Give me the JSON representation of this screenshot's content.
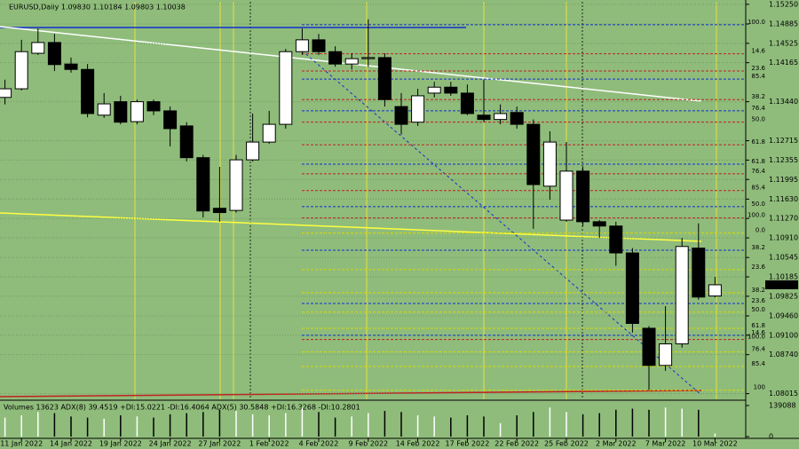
{
  "chart_data": {
    "type": "candlestick",
    "header": "EURUSD,Daily  1.09830 1.10184 1.09803 1.10038",
    "categories": [
      null,
      "11 Jan 2022",
      null,
      null,
      "14 Jan 2022",
      null,
      null,
      "19 Jan 2022",
      null,
      null,
      "24 Jan 2022",
      null,
      null,
      "27 Jan 2022",
      null,
      null,
      "1 Feb 2022",
      null,
      null,
      "4 Feb 2022",
      null,
      null,
      "9 Feb 2022",
      null,
      null,
      "14 Feb 2022",
      null,
      null,
      "17 Feb 2022",
      null,
      null,
      "22 Feb 2022",
      null,
      null,
      "25 Feb 2022",
      null,
      null,
      "2 Mar 2022",
      null,
      null,
      "7 Mar 2022",
      null,
      null,
      "10 Mar 2022"
    ],
    "open": [
      1.1352,
      1.1368,
      1.1434,
      1.1454,
      1.1414,
      1.1404,
      1.1319,
      1.1344,
      1.1307,
      1.1344,
      1.1327,
      1.1299,
      1.124,
      1.1146,
      1.1142,
      1.1236,
      1.1269,
      1.1302,
      1.1437,
      1.1459,
      1.1437,
      1.1414,
      1.1424,
      1.1426,
      1.1335,
      1.1306,
      1.136,
      1.1371,
      1.136,
      1.1319,
      1.1311,
      1.1324,
      1.1302,
      1.1187,
      1.1124,
      1.1215,
      1.1121,
      1.1113,
      1.1063,
      1.0923,
      1.0854,
      1.0894,
      1.1072,
      1.0983
    ],
    "high": [
      1.1385,
      1.1459,
      1.148,
      1.147,
      1.1426,
      1.1414,
      1.136,
      1.1355,
      1.1348,
      1.1348,
      1.1335,
      1.1306,
      1.1245,
      1.1223,
      1.1245,
      1.1322,
      1.1327,
      1.1442,
      1.148,
      1.147,
      1.1447,
      1.1434,
      1.1497,
      1.1434,
      1.136,
      1.1368,
      1.1381,
      1.1381,
      1.1376,
      1.1385,
      1.1339,
      1.1335,
      1.1311,
      1.1289,
      1.1269,
      1.1223,
      1.1124,
      1.1121,
      1.1072,
      1.0927,
      1.0964,
      1.1091,
      1.1118,
      1.10184
    ],
    "low": [
      1.1339,
      1.1365,
      1.1431,
      1.1401,
      1.1398,
      1.1315,
      1.1314,
      1.1302,
      1.1302,
      1.1319,
      1.1261,
      1.1233,
      1.1129,
      1.1121,
      1.1138,
      1.1233,
      1.1266,
      1.1294,
      1.1431,
      1.1431,
      1.1409,
      1.1404,
      1.1409,
      1.1335,
      1.1283,
      1.1299,
      1.1352,
      1.1355,
      1.1319,
      1.1306,
      1.1302,
      1.1294,
      1.1108,
      1.1162,
      1.1121,
      1.1113,
      1.1091,
      1.1039,
      1.0915,
      1.0808,
      1.0844,
      1.0887,
      1.0976,
      1.09803
    ],
    "close": [
      1.1368,
      1.1437,
      1.1454,
      1.1413,
      1.1404,
      1.1322,
      1.134,
      1.1306,
      1.1344,
      1.1327,
      1.1294,
      1.124,
      1.1141,
      1.1138,
      1.1236,
      1.1269,
      1.1302,
      1.1437,
      1.1459,
      1.1437,
      1.1414,
      1.1424,
      1.1426,
      1.1348,
      1.1302,
      1.1355,
      1.1371,
      1.136,
      1.1322,
      1.1311,
      1.1322,
      1.1302,
      1.119,
      1.1269,
      1.1215,
      1.1121,
      1.1113,
      1.1063,
      1.0932,
      1.0854,
      1.0894,
      1.1075,
      1.0981,
      1.10038
    ],
    "ylim": [
      1.0791,
      1.1533
    ],
    "yticks": [
      {
        "value": 1.1525,
        "label": "1.15250"
      },
      {
        "value": 1.14885,
        "label": "1.14885"
      },
      {
        "value": 1.14525,
        "label": "1.14525"
      },
      {
        "value": 1.14165,
        "label": "1.14165"
      },
      {
        "value": 1.1344,
        "label": "1.13440"
      },
      {
        "value": 1.12715,
        "label": "1.12715"
      },
      {
        "value": 1.12355,
        "label": "1.12355"
      },
      {
        "value": 1.11995,
        "label": "1.11995"
      },
      {
        "value": 1.1163,
        "label": "1.11630"
      },
      {
        "value": 1.1127,
        "label": "1.11270"
      },
      {
        "value": 1.1091,
        "label": "1.10910"
      },
      {
        "value": 1.10545,
        "label": "1.10545"
      },
      {
        "value": 1.10185,
        "label": "1.10185"
      },
      {
        "value": 1.09825,
        "label": "1.09825"
      },
      {
        "value": 1.0946,
        "label": "1.09460"
      },
      {
        "value": 1.091,
        "label": "1.09100"
      },
      {
        "value": 1.0874,
        "label": "1.08740"
      },
      {
        "value": 1.08015,
        "label": "1.08015"
      }
    ],
    "current_price": {
      "value": 1.10038,
      "label": "1.10038"
    },
    "grid": true,
    "fib_levels": [
      {
        "value": 1.1487,
        "label": "100.0",
        "color": "#1030d0"
      },
      {
        "value": 1.1433,
        "label": "14.6",
        "color": "#c02020"
      },
      {
        "value": 1.1401,
        "label": "23.6",
        "color": "#c02020"
      },
      {
        "value": 1.1386,
        "label": "85.4",
        "color": "#1030d0"
      },
      {
        "value": 1.1348,
        "label": "38.2",
        "color": "#c02020"
      },
      {
        "value": 1.1327,
        "label": "76.4",
        "color": "#1030d0"
      },
      {
        "value": 1.1306,
        "label": "50.0",
        "color": "#c02020"
      },
      {
        "value": 1.1264,
        "label": "61.8",
        "color": "#c02020"
      },
      {
        "value": 1.1228,
        "label": "61.8",
        "color": "#1030d0"
      },
      {
        "value": 1.121,
        "label": "76.4",
        "color": "#c02020"
      },
      {
        "value": 1.1179,
        "label": "85.4",
        "color": "#c02020"
      },
      {
        "value": 1.1149,
        "label": "50.0",
        "color": "#1030d0"
      },
      {
        "value": 1.1128,
        "label": "100.0",
        "color": "#c02020"
      },
      {
        "value": 1.11,
        "label": "0.0",
        "color": "#d8d800"
      },
      {
        "value": 1.1068,
        "label": "38.2",
        "color": "#1030d0"
      },
      {
        "value": 1.1032,
        "label": "23.6",
        "color": "#d8d800"
      },
      {
        "value": 1.0989,
        "label": "38.2",
        "color": "#d8d800"
      },
      {
        "value": 1.0969,
        "label": "23.6",
        "color": "#1030d0"
      },
      {
        "value": 1.0953,
        "label": "50.0",
        "color": "#d8d800"
      },
      {
        "value": 1.0923,
        "label": "61.8",
        "color": "#d8d800"
      },
      {
        "value": 1.091,
        "label": "14.6",
        "color": "#1030d0"
      },
      {
        "value": 1.0902,
        "label": "100.0",
        "color": "#c02020"
      },
      {
        "value": 1.0879,
        "label": "76.4",
        "color": "#d8d800"
      },
      {
        "value": 1.0852,
        "label": "85.4",
        "color": "#d8d800"
      },
      {
        "value": 1.0808,
        "label": "100",
        "color": "#d8d800"
      }
    ],
    "volume_label": "Volumes 13623  ADX(8) 39.4519 +DI:15.0221 -DI:16.4064  ADX(5) 30.5848 +DI:16.3268 -DI:10.2801",
    "volume": [
      85000,
      95000,
      110000,
      105000,
      90000,
      85000,
      80000,
      95000,
      90000,
      85000,
      100000,
      105000,
      110000,
      120000,
      115000,
      100000,
      95000,
      105000,
      130000,
      110000,
      85000,
      90000,
      105000,
      115000,
      110000,
      95000,
      90000,
      85000,
      95000,
      90000,
      60000,
      95000,
      110000,
      130000,
      110000,
      100000,
      105000,
      120000,
      125000,
      120000,
      130000,
      125000,
      120000,
      13623
    ],
    "volume_ylim": [
      0,
      139088
    ],
    "volume_yticks": [
      0,
      139088
    ]
  }
}
